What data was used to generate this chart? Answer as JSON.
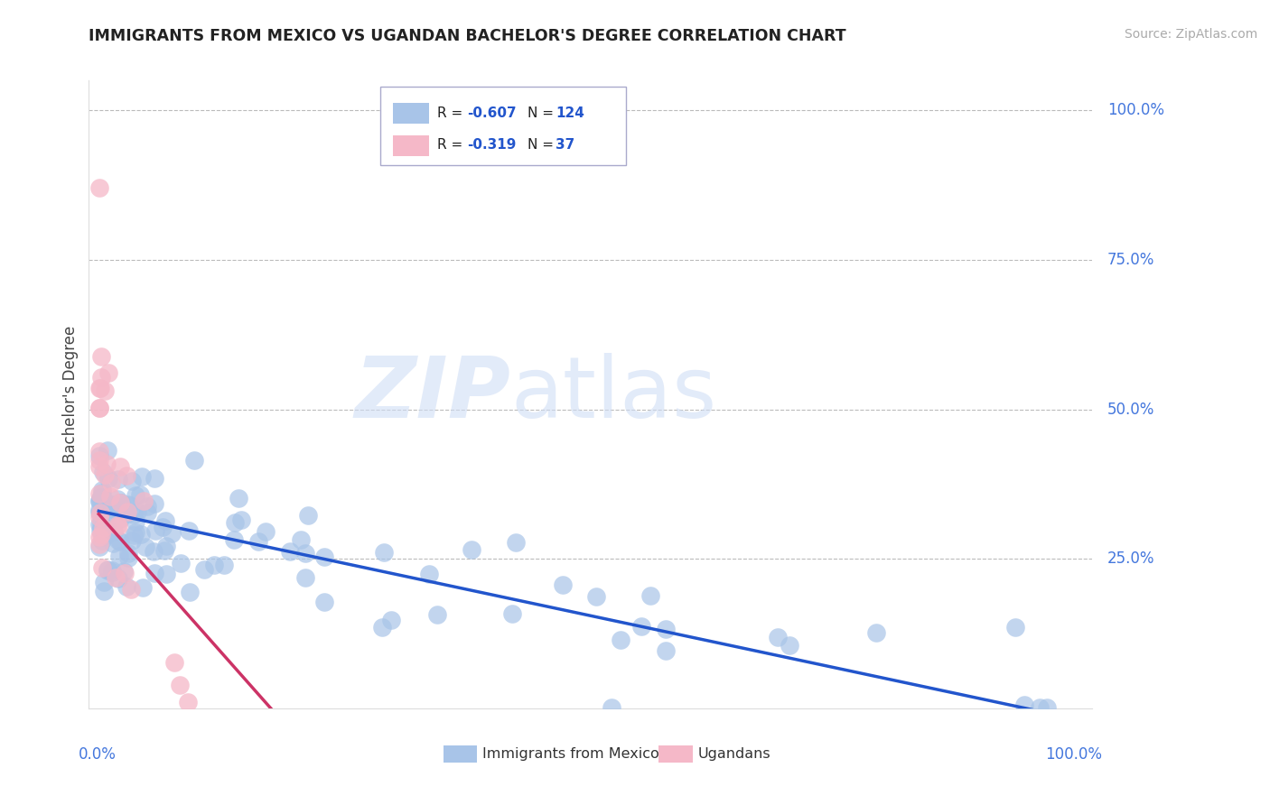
{
  "title": "IMMIGRANTS FROM MEXICO VS UGANDAN BACHELOR'S DEGREE CORRELATION CHART",
  "source": "Source: ZipAtlas.com",
  "ylabel": "Bachelor's Degree",
  "legend_label1": "Immigrants from Mexico",
  "legend_label2": "Ugandans",
  "R_blue": -0.607,
  "N_blue": 124,
  "R_pink": -0.319,
  "N_pink": 37,
  "blue_color": "#a8c4e8",
  "pink_color": "#f5b8c8",
  "blue_line_color": "#2255cc",
  "pink_line_color": "#cc3366",
  "grid_color": "#bbbbbb",
  "background_color": "#ffffff",
  "title_color": "#222222",
  "source_color": "#aaaaaa",
  "tick_label_color": "#4477dd",
  "ylabel_color": "#444444",
  "ylim": [
    0.0,
    1.05
  ],
  "xlim": [
    -0.01,
    1.01
  ],
  "ytick_vals": [
    0.25,
    0.5,
    0.75,
    1.0
  ],
  "ytick_labels": [
    "25.0%",
    "50.0%",
    "75.0%",
    "100.0%"
  ],
  "blue_line_x0": 0.0,
  "blue_line_y0": 0.33,
  "blue_line_x1": 1.0,
  "blue_line_y1": -0.02,
  "pink_line_x0": 0.0,
  "pink_line_y0": 0.325,
  "pink_line_x1": 0.175,
  "pink_line_y1": 0.0
}
